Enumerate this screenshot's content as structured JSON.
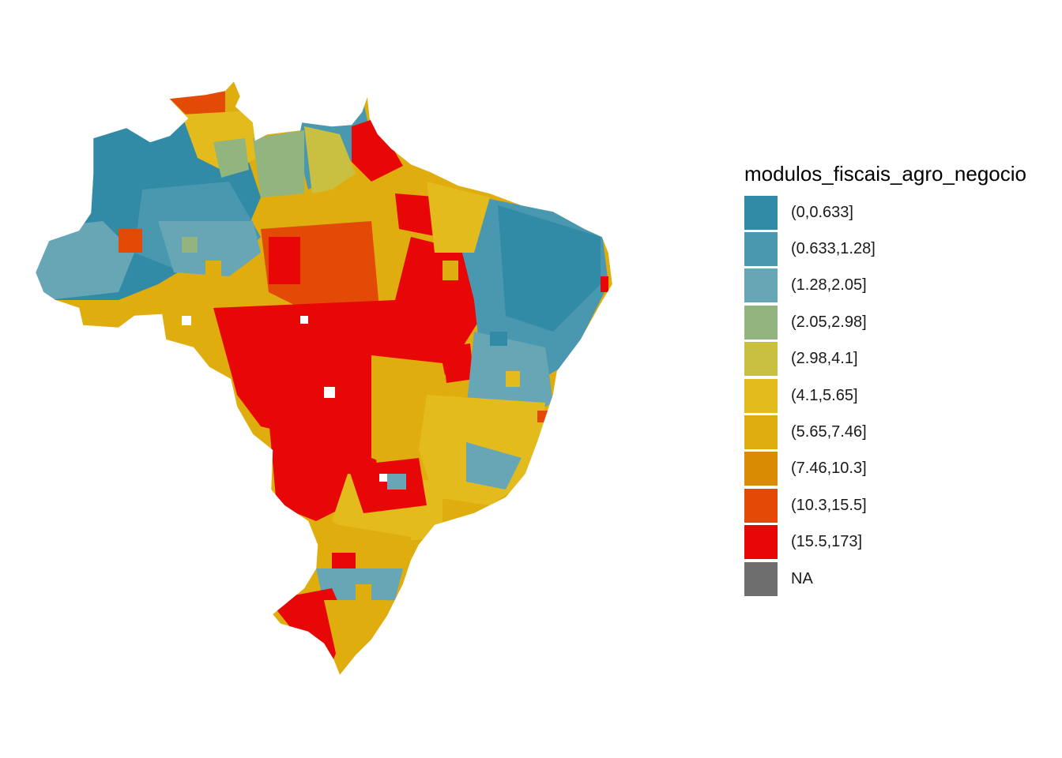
{
  "legend": {
    "title": "modulos_fiscais_agro_negocio",
    "items": [
      {
        "label": "(0,0.633]",
        "color": "#318aa6"
      },
      {
        "label": "(0.633,1.28]",
        "color": "#4a98af"
      },
      {
        "label": "(1.28,2.05]",
        "color": "#67a7b5"
      },
      {
        "label": "(2.05,2.98]",
        "color": "#92b47f"
      },
      {
        "label": "(2.98,4.1]",
        "color": "#c9bf40"
      },
      {
        "label": "(4.1,5.65]",
        "color": "#e3bb1d"
      },
      {
        "label": "(5.65,7.46]",
        "color": "#dfad0e"
      },
      {
        "label": "(7.46,10.3]",
        "color": "#d98b03"
      },
      {
        "label": "(10.3,15.5]",
        "color": "#e34a05"
      },
      {
        "label": "(15.5,173]",
        "color": "#e80707"
      },
      {
        "label": "NA",
        "color": "#6e6e6e"
      }
    ]
  }
}
